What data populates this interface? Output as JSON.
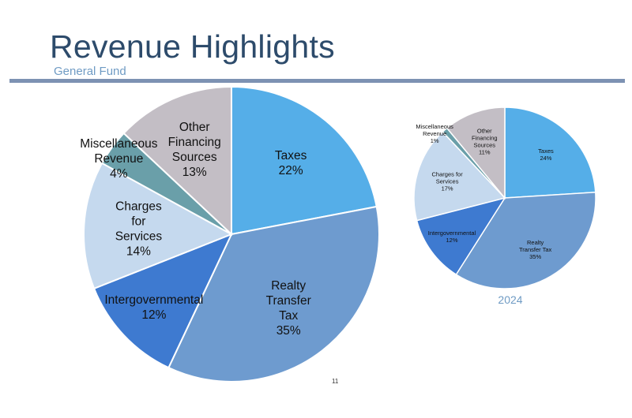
{
  "header": {
    "title": "Revenue Highlights",
    "subtitle": "General Fund"
  },
  "footer": {
    "page_number": "11"
  },
  "chart_data": [
    {
      "type": "pie",
      "slices": [
        {
          "label": [
            "Taxes"
          ],
          "value": 22,
          "value_label": "22%",
          "color": "#55aee8"
        },
        {
          "label": [
            "Realty",
            "Transfer",
            "Tax"
          ],
          "value": 35,
          "value_label": "35%",
          "color": "#6e9bcf"
        },
        {
          "label": [
            "Intergovernmental"
          ],
          "value": 12,
          "value_label": "12%",
          "color": "#3e7ad0"
        },
        {
          "label": [
            "Charges",
            "for",
            "Services"
          ],
          "value": 14,
          "value_label": "14%",
          "color": "#c5d9ee"
        },
        {
          "label": [
            "Miscellaneous",
            "Revenue"
          ],
          "value": 4,
          "value_label": "4%",
          "color": "#6a9fa9"
        },
        {
          "label": [
            "Other",
            "Financing",
            "Sources"
          ],
          "value": 13,
          "value_label": "13%",
          "color": "#c3bec5"
        }
      ]
    },
    {
      "type": "pie",
      "title": "2024",
      "slices": [
        {
          "label": [
            "Taxes"
          ],
          "value": 24,
          "value_label": "24%",
          "color": "#55aee8"
        },
        {
          "label": [
            "Realty",
            "Transfer Tax"
          ],
          "value": 35,
          "value_label": "35%",
          "color": "#6e9bcf"
        },
        {
          "label": [
            "Intergovernmental"
          ],
          "value": 12,
          "value_label": "12%",
          "color": "#3e7ad0"
        },
        {
          "label": [
            "Charges for",
            "Services"
          ],
          "value": 17,
          "value_label": "17%",
          "color": "#c5d9ee"
        },
        {
          "label": [
            "Miscellaneous",
            "Revenue"
          ],
          "value": 1,
          "value_label": "1%",
          "color": "#6a9fa9"
        },
        {
          "label": [
            "Other",
            "Financing",
            "Sources"
          ],
          "value": 11,
          "value_label": "11%",
          "color": "#c3bec5"
        }
      ]
    }
  ]
}
